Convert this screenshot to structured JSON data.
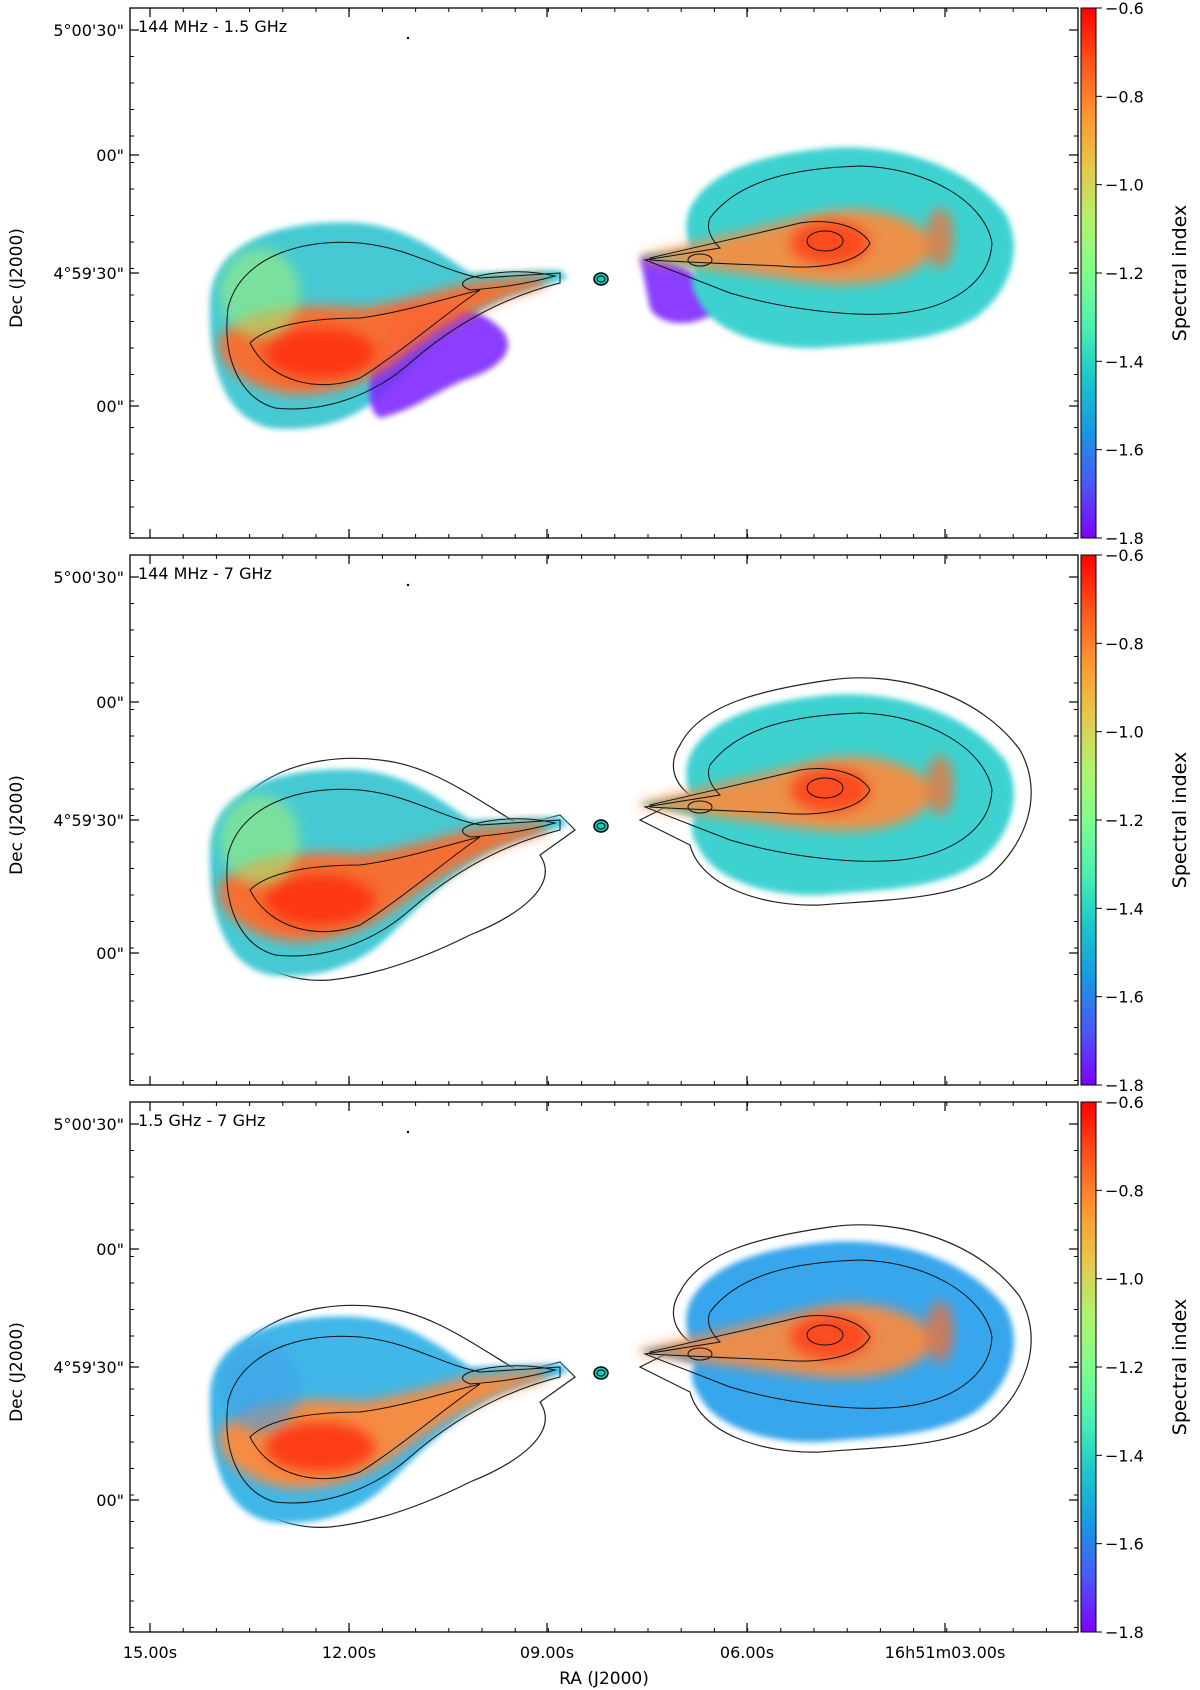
{
  "chart_data": [
    {
      "type": "heatmap",
      "label": "144 MHz - 1.5 GHz",
      "ylabel": "Dec (J2000)",
      "yticks": [
        "5°00'30\"",
        "00\"",
        "4°59'30\"",
        "00\""
      ],
      "xticks": [],
      "xlabel": "",
      "colorbar": {
        "label": "Spectral index",
        "min": -1.8,
        "max": -0.6,
        "ticks": [
          "−0.6",
          "−0.8",
          "−1.0",
          "−1.2",
          "−1.4",
          "−1.6",
          "−1.8"
        ]
      }
    },
    {
      "type": "heatmap",
      "label": "144 MHz - 7 GHz",
      "ylabel": "Dec (J2000)",
      "yticks": [
        "5°00'30\"",
        "00\"",
        "4°59'30\"",
        "00\""
      ],
      "xticks": [],
      "xlabel": "",
      "colorbar": {
        "label": "Spectral index",
        "min": -1.8,
        "max": -0.6,
        "ticks": [
          "−0.6",
          "−0.8",
          "−1.0",
          "−1.2",
          "−1.4",
          "−1.6",
          "−1.8"
        ]
      }
    },
    {
      "type": "heatmap",
      "label": "1.5 GHz - 7 GHz",
      "ylabel": "Dec (J2000)",
      "yticks": [
        "5°00'30\"",
        "00\"",
        "4°59'30\"",
        "00\""
      ],
      "xticks": [
        "15.00s",
        "12.00s",
        "09.00s",
        "06.00s",
        "16h51m03.00s"
      ],
      "xlabel": "RA (J2000)",
      "colorbar": {
        "label": "Spectral index",
        "min": -1.8,
        "max": -0.6,
        "ticks": [
          "−0.6",
          "−0.8",
          "−1.0",
          "−1.2",
          "−1.4",
          "−1.6",
          "−1.8"
        ]
      }
    }
  ],
  "colors": {
    "colormap": [
      "#7f00ff",
      "#4c56f4",
      "#1996e4",
      "#19c7ca",
      "#4cf0b2",
      "#80fe8c",
      "#b2f26b",
      "#e6c74c",
      "#ff9533",
      "#ff5219",
      "#ff0000"
    ]
  }
}
